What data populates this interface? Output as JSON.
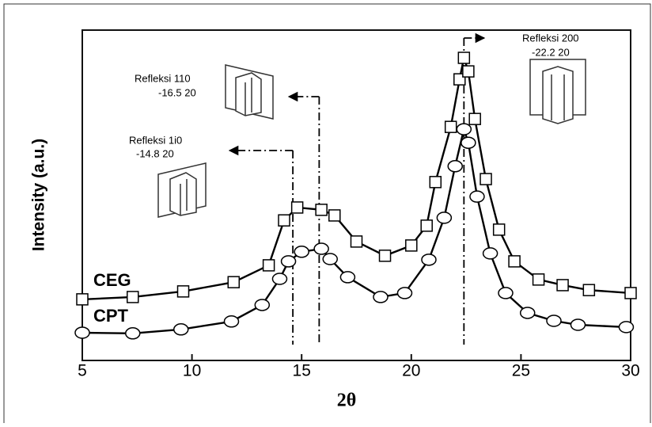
{
  "chart_data": {
    "type": "line",
    "xlabel": "2θ",
    "ylabel": "Intensity (a.u.)",
    "xlim": [
      5,
      30
    ],
    "xticks": [
      5,
      10,
      15,
      20,
      25,
      30
    ],
    "ylim": [
      0,
      100
    ],
    "series": [
      {
        "name": "CEG",
        "color": "#000000",
        "marker": "square",
        "x": [
          5.0,
          7.3,
          9.6,
          11.9,
          13.5,
          14.2,
          14.8,
          15.9,
          16.5,
          17.5,
          18.8,
          20.0,
          20.7,
          21.1,
          21.8,
          22.2,
          22.4,
          22.6,
          22.9,
          23.4,
          24.0,
          24.7,
          25.8,
          26.9,
          28.1,
          30.0
        ],
        "values": [
          18.5,
          19.2,
          20.9,
          23.7,
          28.8,
          42.4,
          46.3,
          45.6,
          43.9,
          36.0,
          31.7,
          34.8,
          40.8,
          54.0,
          70.7,
          85.1,
          91.6,
          87.5,
          73.1,
          54.9,
          39.6,
          30.0,
          24.5,
          22.8,
          21.3,
          20.4
        ]
      },
      {
        "name": "CPT",
        "color": "#000000",
        "marker": "circle",
        "x": [
          5.0,
          7.3,
          9.5,
          11.8,
          13.2,
          14.0,
          14.4,
          15.0,
          15.9,
          16.3,
          17.1,
          18.6,
          19.7,
          20.8,
          21.5,
          22.0,
          22.4,
          22.6,
          23.0,
          23.6,
          24.3,
          25.3,
          26.5,
          27.6,
          29.8
        ],
        "values": [
          8.4,
          8.2,
          9.4,
          11.8,
          16.8,
          24.7,
          30.0,
          32.9,
          33.8,
          30.7,
          25.2,
          19.2,
          20.4,
          30.5,
          43.2,
          58.8,
          70.0,
          65.9,
          49.6,
          32.4,
          20.4,
          14.4,
          12.0,
          10.8,
          10.1
        ]
      }
    ],
    "reference_lines": [
      14.6,
      15.8,
      22.4
    ],
    "annotations": [
      {
        "label": "Refleksi 1i0",
        "value": "-14.8 20"
      },
      {
        "label": "Refleksi 110",
        "value": "-16.5 20"
      },
      {
        "label": "Refleksi 200",
        "value": "-22.2 20"
      }
    ]
  }
}
